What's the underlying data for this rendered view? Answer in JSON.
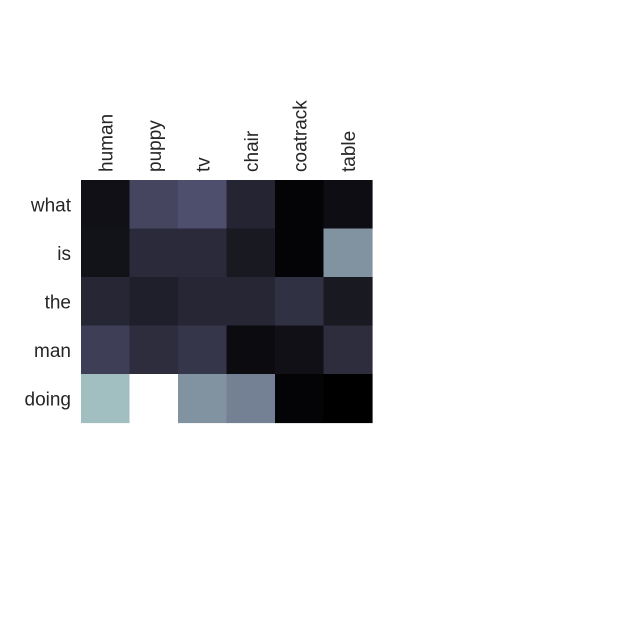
{
  "chart_data": {
    "type": "heatmap",
    "colormap": "bone",
    "x_labels": [
      "human",
      "puppy",
      "tv",
      "chair",
      "coatrack",
      "table"
    ],
    "y_labels": [
      "what",
      "is",
      "the",
      "man",
      "doing"
    ],
    "values": [
      [
        0.07,
        0.31,
        0.35,
        0.16,
        0.02,
        0.06
      ],
      [
        0.08,
        0.19,
        0.19,
        0.11,
        0.02,
        0.58
      ],
      [
        0.17,
        0.14,
        0.17,
        0.17,
        0.22,
        0.11
      ],
      [
        0.28,
        0.2,
        0.24,
        0.05,
        0.07,
        0.2
      ],
      [
        0.72,
        1.0,
        0.58,
        0.52,
        0.02,
        0.0
      ]
    ]
  }
}
